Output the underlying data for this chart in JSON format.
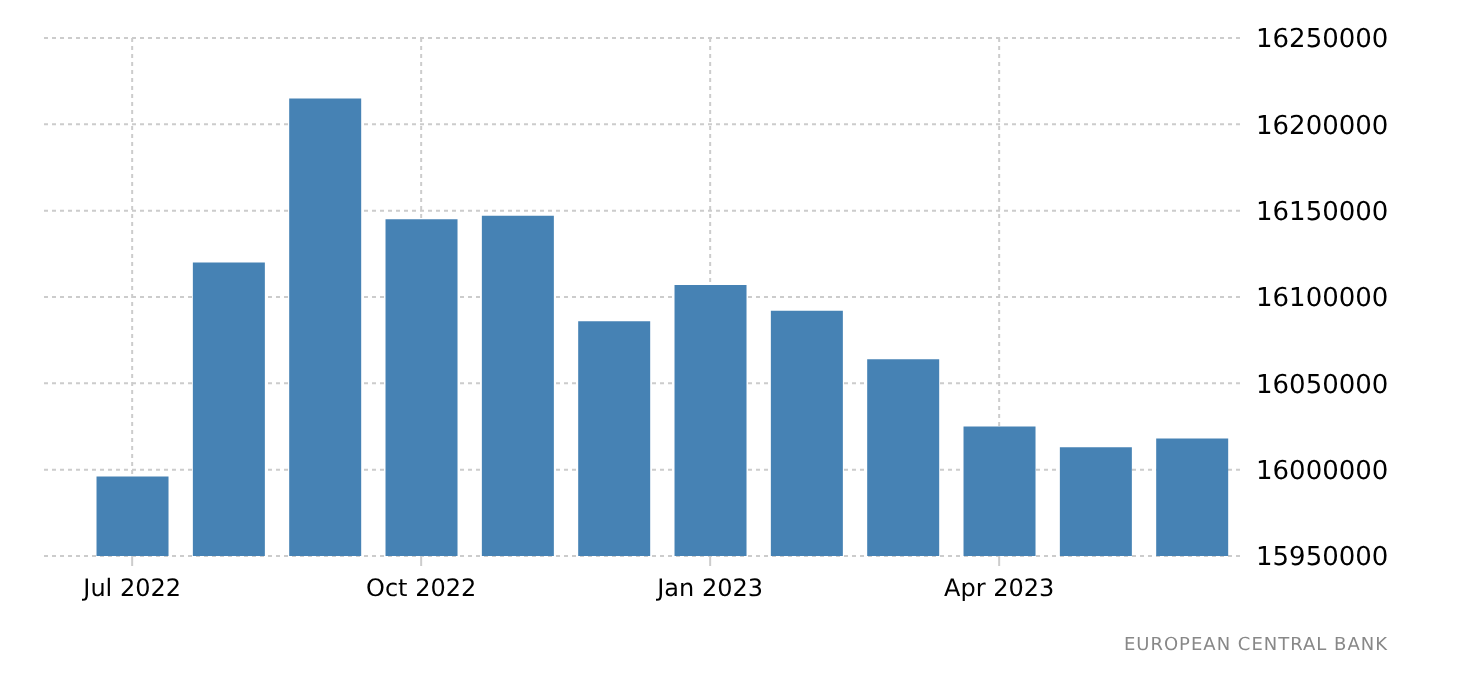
{
  "chart_data": {
    "type": "bar",
    "categories": [
      "Jul 2022",
      null,
      null,
      "Oct 2022",
      null,
      null,
      "Jan 2023",
      null,
      null,
      "Apr 2023",
      null,
      null
    ],
    "values": [
      15996000,
      16120000,
      16215000,
      16145000,
      16147000,
      16086000,
      16107000,
      16092000,
      16064000,
      16025000,
      16013000,
      16018000
    ],
    "color": "#4682b4",
    "ylim": [
      15950000,
      16250000
    ],
    "yticks": [
      15950000,
      16000000,
      16050000,
      16100000,
      16150000,
      16200000,
      16250000
    ],
    "grid": true,
    "annotations": [
      "EUROPEAN CENTRAL BANK"
    ]
  }
}
